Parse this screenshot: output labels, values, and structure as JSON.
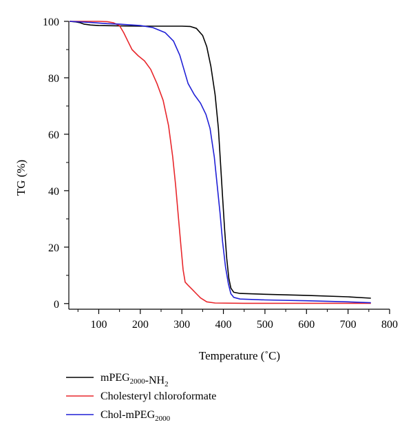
{
  "chart_data": {
    "type": "line",
    "xlabel": "Temperature (˚C)",
    "ylabel": "TG (%)",
    "xlim": [
      28,
      800
    ],
    "ylim": [
      -2,
      100
    ],
    "x_ticks": [
      100,
      200,
      300,
      400,
      500,
      600,
      700,
      800
    ],
    "y_ticks": [
      0,
      20,
      40,
      60,
      80,
      100
    ],
    "legend_position": "bottom-left",
    "series": [
      {
        "name": "mPEG2000-NH2",
        "name_parts": [
          {
            "text": "mPEG",
            "sub": false
          },
          {
            "text": "2000",
            "sub": true
          },
          {
            "text": "-NH",
            "sub": false
          },
          {
            "text": "2",
            "sub": true
          }
        ],
        "color": "#000000",
        "points": [
          [
            30,
            100
          ],
          [
            45,
            99.8
          ],
          [
            55,
            99.5
          ],
          [
            65,
            99
          ],
          [
            80,
            98.7
          ],
          [
            100,
            98.5
          ],
          [
            150,
            98.4
          ],
          [
            200,
            98.3
          ],
          [
            250,
            98.3
          ],
          [
            300,
            98.3
          ],
          [
            320,
            98.2
          ],
          [
            335,
            97.5
          ],
          [
            350,
            95
          ],
          [
            360,
            91
          ],
          [
            370,
            84
          ],
          [
            380,
            74
          ],
          [
            388,
            62
          ],
          [
            393,
            50
          ],
          [
            398,
            38
          ],
          [
            403,
            26
          ],
          [
            408,
            16
          ],
          [
            413,
            9
          ],
          [
            418,
            5.5
          ],
          [
            425,
            4
          ],
          [
            440,
            3.6
          ],
          [
            500,
            3.3
          ],
          [
            600,
            2.9
          ],
          [
            700,
            2.4
          ],
          [
            755,
            1.9
          ]
        ]
      },
      {
        "name": "Cholesteryl chloroformate",
        "name_parts": [
          {
            "text": "Cholesteryl chloroformate",
            "sub": false
          }
        ],
        "color": "#e8262b",
        "points": [
          [
            30,
            100
          ],
          [
            60,
            100
          ],
          [
            100,
            100
          ],
          [
            120,
            99.9
          ],
          [
            135,
            99.5
          ],
          [
            150,
            98.5
          ],
          [
            160,
            96
          ],
          [
            170,
            93
          ],
          [
            180,
            90
          ],
          [
            195,
            87.8
          ],
          [
            210,
            86
          ],
          [
            225,
            83
          ],
          [
            240,
            78
          ],
          [
            255,
            72
          ],
          [
            268,
            63
          ],
          [
            278,
            52
          ],
          [
            285,
            42
          ],
          [
            292,
            30
          ],
          [
            298,
            20
          ],
          [
            303,
            12
          ],
          [
            308,
            7.6
          ],
          [
            315,
            6.5
          ],
          [
            325,
            5
          ],
          [
            335,
            3.5
          ],
          [
            345,
            2
          ],
          [
            360,
            0.6
          ],
          [
            380,
            0.2
          ],
          [
            450,
            0.1
          ],
          [
            600,
            0.1
          ],
          [
            755,
            0.1
          ]
        ]
      },
      {
        "name": "Chol-mPEG2000",
        "name_parts": [
          {
            "text": "Chol-mPEG",
            "sub": false
          },
          {
            "text": "2000",
            "sub": true
          }
        ],
        "color": "#1f1fd6",
        "points": [
          [
            30,
            100
          ],
          [
            80,
            99.6
          ],
          [
            120,
            99.2
          ],
          [
            150,
            99
          ],
          [
            200,
            98.5
          ],
          [
            230,
            97.8
          ],
          [
            260,
            96
          ],
          [
            280,
            93
          ],
          [
            295,
            88
          ],
          [
            305,
            83
          ],
          [
            315,
            78
          ],
          [
            330,
            74
          ],
          [
            345,
            71
          ],
          [
            358,
            67
          ],
          [
            368,
            62
          ],
          [
            378,
            52
          ],
          [
            385,
            42
          ],
          [
            392,
            32
          ],
          [
            398,
            22
          ],
          [
            405,
            13
          ],
          [
            412,
            7
          ],
          [
            418,
            3.5
          ],
          [
            425,
            2.2
          ],
          [
            440,
            1.6
          ],
          [
            500,
            1.3
          ],
          [
            600,
            1
          ],
          [
            700,
            0.6
          ],
          [
            755,
            0.3
          ]
        ]
      }
    ]
  }
}
